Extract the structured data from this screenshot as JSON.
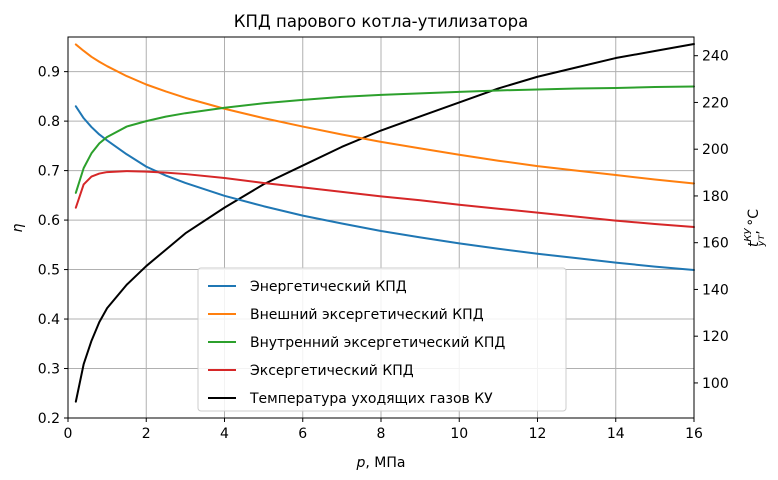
{
  "chart_data": {
    "type": "line",
    "title": "КПД парового котла-утилизатора",
    "xlabel": {
      "var": "p",
      "rest": ", МПа"
    },
    "ylabel": "η",
    "y2label": {
      "main": "t",
      "sup": "КУ",
      "sub": "ут",
      "rest": ",  °C"
    },
    "xlim": [
      0,
      16
    ],
    "ylim": [
      0.2,
      0.97
    ],
    "y2lim": [
      85,
      248
    ],
    "xticks": [
      "0",
      "2",
      "4",
      "6",
      "8",
      "10",
      "12",
      "14",
      "16"
    ],
    "yticks": [
      "0.2",
      "0.3",
      "0.4",
      "0.5",
      "0.6",
      "0.7",
      "0.8",
      "0.9"
    ],
    "y2ticks": [
      "100",
      "120",
      "140",
      "160",
      "180",
      "200",
      "220",
      "240"
    ],
    "grid": true,
    "legend_position": "lower-center",
    "x": [
      0.2,
      0.4,
      0.6,
      0.8,
      1.0,
      1.5,
      2.0,
      2.5,
      3.0,
      4.0,
      5.0,
      6.0,
      7.0,
      8.0,
      9.0,
      10.0,
      11.0,
      12.0,
      13.0,
      14.0,
      15.0,
      16.0
    ],
    "series": [
      {
        "name": "Энергетический КПД",
        "axis": "left",
        "color": "#1f77b4",
        "values": [
          0.83,
          0.806,
          0.788,
          0.773,
          0.761,
          0.733,
          0.708,
          0.69,
          0.675,
          0.649,
          0.628,
          0.609,
          0.593,
          0.578,
          0.565,
          0.553,
          0.542,
          0.532,
          0.523,
          0.514,
          0.506,
          0.499
        ]
      },
      {
        "name": "Внешний эксергетический КПД",
        "axis": "left",
        "color": "#ff7f0e",
        "values": [
          0.955,
          0.942,
          0.93,
          0.92,
          0.911,
          0.891,
          0.874,
          0.86,
          0.847,
          0.825,
          0.806,
          0.789,
          0.773,
          0.758,
          0.745,
          0.732,
          0.72,
          0.709,
          0.7,
          0.691,
          0.682,
          0.674
        ]
      },
      {
        "name": "Внутренний эксергетический КПД",
        "axis": "left",
        "color": "#2ca02c",
        "values": [
          0.655,
          0.705,
          0.735,
          0.755,
          0.768,
          0.789,
          0.8,
          0.809,
          0.816,
          0.827,
          0.836,
          0.843,
          0.849,
          0.853,
          0.856,
          0.859,
          0.862,
          0.864,
          0.866,
          0.867,
          0.869,
          0.87
        ]
      },
      {
        "name": "Эксергетический КПД",
        "axis": "left",
        "color": "#d62728",
        "values": [
          0.625,
          0.672,
          0.688,
          0.694,
          0.697,
          0.699,
          0.698,
          0.696,
          0.693,
          0.685,
          0.675,
          0.666,
          0.657,
          0.648,
          0.64,
          0.631,
          0.623,
          0.615,
          0.607,
          0.599,
          0.592,
          0.586
        ]
      },
      {
        "name": "Температура уходящих газов КУ",
        "axis": "right",
        "color": "#000000",
        "values": [
          92,
          108,
          118,
          126,
          132,
          142,
          150,
          157,
          164,
          175,
          185,
          193,
          201,
          208,
          214,
          220,
          226,
          231,
          235,
          239,
          242,
          245
        ]
      }
    ]
  }
}
